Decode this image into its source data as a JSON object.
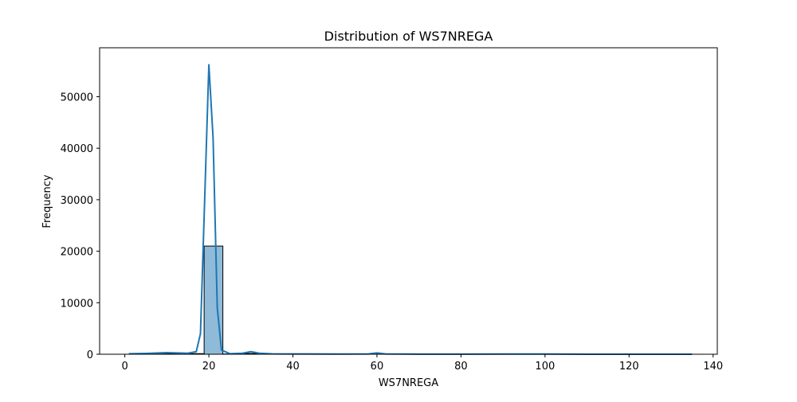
{
  "chart_data": {
    "type": "histogram",
    "title": "Distribution of WS7NREGA",
    "xlabel": "WS7NREGA",
    "ylabel": "Frequency",
    "xlim": [
      -6,
      141
    ],
    "ylim": [
      0,
      59500
    ],
    "xticks": [
      0,
      20,
      40,
      60,
      80,
      100,
      120,
      140
    ],
    "yticks": [
      0,
      10000,
      20000,
      30000,
      40000,
      50000
    ],
    "grid": false,
    "legend": false,
    "bar_color": "#1f77b4",
    "bar_opacity": 0.5,
    "bar_edge_color": "#000000",
    "kde_color": "#1f77b4",
    "bins": [
      {
        "x0": 1.0,
        "x1": 5.47,
        "count": 40
      },
      {
        "x0": 5.47,
        "x1": 9.93,
        "count": 60
      },
      {
        "x0": 9.93,
        "x1": 14.4,
        "count": 80
      },
      {
        "x0": 14.4,
        "x1": 18.87,
        "count": 120
      },
      {
        "x0": 18.87,
        "x1": 23.33,
        "count": 21000
      },
      {
        "x0": 23.33,
        "x1": 27.8,
        "count": 50
      },
      {
        "x0": 27.8,
        "x1": 32.27,
        "count": 150
      },
      {
        "x0": 32.27,
        "x1": 36.73,
        "count": 20
      },
      {
        "x0": 36.73,
        "x1": 41.2,
        "count": 30
      },
      {
        "x0": 41.2,
        "x1": 45.67,
        "count": 10
      },
      {
        "x0": 45.67,
        "x1": 50.13,
        "count": 20
      },
      {
        "x0": 50.13,
        "x1": 54.6,
        "count": 10
      },
      {
        "x0": 54.6,
        "x1": 59.07,
        "count": 10
      },
      {
        "x0": 59.07,
        "x1": 63.53,
        "count": 80
      },
      {
        "x0": 63.53,
        "x1": 68.0,
        "count": 10
      },
      {
        "x0": 68.0,
        "x1": 72.47,
        "count": 10
      },
      {
        "x0": 72.47,
        "x1": 76.93,
        "count": 5
      },
      {
        "x0": 76.93,
        "x1": 81.4,
        "count": 5
      },
      {
        "x0": 81.4,
        "x1": 85.87,
        "count": 5
      },
      {
        "x0": 85.87,
        "x1": 90.33,
        "count": 20
      },
      {
        "x0": 90.33,
        "x1": 94.8,
        "count": 5
      },
      {
        "x0": 94.8,
        "x1": 99.27,
        "count": 5
      },
      {
        "x0": 99.27,
        "x1": 103.73,
        "count": 30
      },
      {
        "x0": 103.73,
        "x1": 108.2,
        "count": 5
      },
      {
        "x0": 108.2,
        "x1": 112.67,
        "count": 5
      },
      {
        "x0": 112.67,
        "x1": 117.13,
        "count": 5
      },
      {
        "x0": 117.13,
        "x1": 121.6,
        "count": 5
      },
      {
        "x0": 121.6,
        "x1": 126.07,
        "count": 5
      },
      {
        "x0": 126.07,
        "x1": 130.53,
        "count": 5
      },
      {
        "x0": 130.53,
        "x1": 135.0,
        "count": 5
      }
    ],
    "kde": {
      "x": [
        1,
        5,
        10,
        15,
        17,
        18,
        19,
        20,
        21,
        22,
        23,
        25,
        28,
        30,
        32,
        35,
        40,
        50,
        58,
        60,
        62,
        70,
        80,
        90,
        100,
        110,
        120,
        135
      ],
      "y": [
        100,
        150,
        300,
        200,
        500,
        4000,
        30000,
        56200,
        42000,
        9000,
        800,
        100,
        200,
        500,
        200,
        80,
        60,
        40,
        60,
        250,
        60,
        20,
        20,
        40,
        40,
        10,
        10,
        10
      ]
    }
  }
}
